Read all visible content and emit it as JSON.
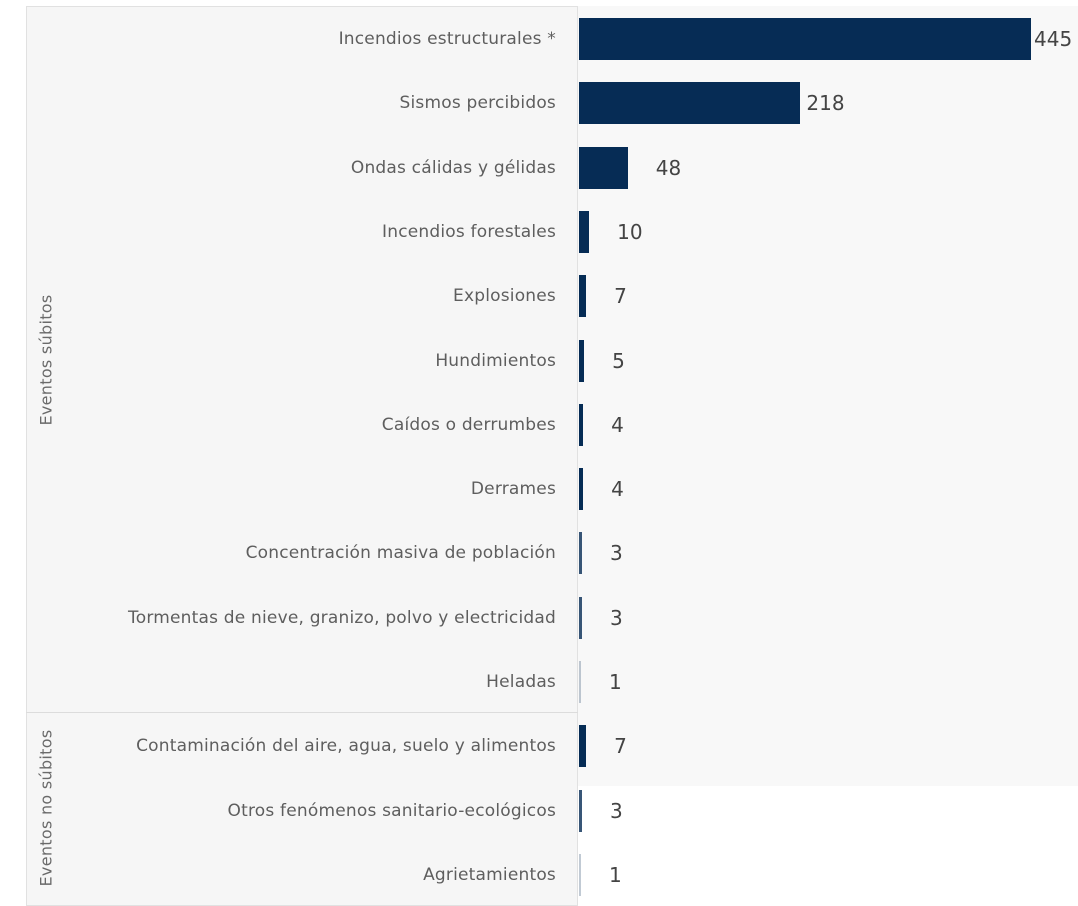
{
  "chart_data": {
    "type": "bar",
    "orientation": "horizontal",
    "bar_color": "#062c55",
    "groups": [
      {
        "name": "Eventos súbitos",
        "categories": [
          "Incendios estructurales *",
          "Sismos percibidos",
          "Ondas cálidas y gélidas",
          "Incendios forestales",
          "Explosiones",
          "Hundimientos",
          "Caídos o derrumbes",
          "Derrames",
          "Concentración masiva de población",
          "Tormentas de nieve, granizo, polvo y electricidad",
          "Heladas"
        ],
        "values": [
          445,
          218,
          48,
          10,
          7,
          5,
          4,
          4,
          3,
          3,
          1
        ]
      },
      {
        "name": "Eventos no súbitos",
        "categories": [
          "Contaminación del aire, agua, suelo y alimentos",
          "Otros fenómenos sanitario-ecológicos",
          "Agrietamientos"
        ],
        "values": [
          7,
          3,
          1
        ]
      }
    ]
  }
}
